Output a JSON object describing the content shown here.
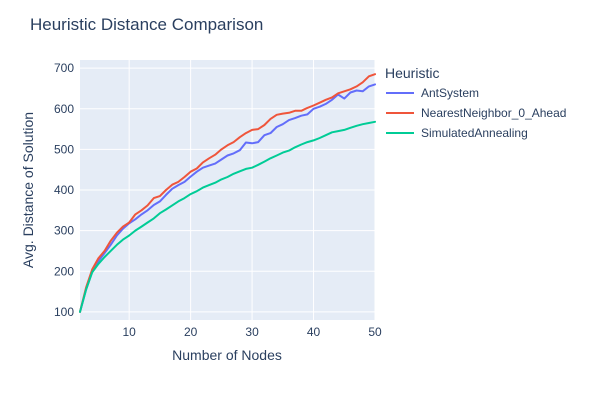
{
  "chart_data": {
    "type": "line",
    "title": "Heuristic Distance Comparison",
    "xlabel": "Number of Nodes",
    "ylabel": "Avg. Distance of Solution",
    "xlim": [
      2,
      50
    ],
    "ylim": [
      80,
      720
    ],
    "xticks": [
      10,
      20,
      30,
      40,
      50
    ],
    "yticks": [
      100,
      200,
      300,
      400,
      500,
      600,
      700
    ],
    "grid": true,
    "legend": {
      "title": "Heuristic",
      "placement": "right"
    },
    "colors": {
      "plot_bg": "#e5ecf6",
      "grid": "#ffffff"
    },
    "x": [
      2,
      3,
      4,
      5,
      6,
      7,
      8,
      9,
      10,
      11,
      12,
      13,
      14,
      15,
      16,
      17,
      18,
      19,
      20,
      21,
      22,
      23,
      24,
      25,
      26,
      27,
      28,
      29,
      30,
      31,
      32,
      33,
      34,
      35,
      36,
      37,
      38,
      39,
      40,
      41,
      42,
      43,
      44,
      45,
      46,
      47,
      48,
      49,
      50
    ],
    "series": [
      {
        "name": "AntSystem",
        "color": "#636efa",
        "values": [
          100,
          155,
          200,
          225,
          245,
          265,
          288,
          305,
          318,
          328,
          340,
          350,
          363,
          372,
          388,
          403,
          412,
          420,
          433,
          445,
          455,
          460,
          465,
          475,
          485,
          490,
          498,
          517,
          515,
          518,
          535,
          540,
          555,
          562,
          572,
          577,
          583,
          586,
          600,
          605,
          612,
          622,
          635,
          625,
          640,
          645,
          643,
          655,
          660
        ]
      },
      {
        "name": "NearestNeighbor_0_Ahead",
        "color": "#ef553b",
        "values": [
          100,
          160,
          205,
          232,
          250,
          275,
          295,
          310,
          320,
          340,
          350,
          362,
          380,
          385,
          400,
          413,
          420,
          432,
          445,
          453,
          468,
          478,
          487,
          500,
          510,
          518,
          530,
          540,
          548,
          550,
          560,
          575,
          585,
          588,
          590,
          595,
          595,
          602,
          608,
          615,
          622,
          628,
          638,
          643,
          648,
          655,
          665,
          680,
          685
        ]
      },
      {
        "name": "SimulatedAnnealing",
        "color": "#00cc96",
        "values": [
          100,
          155,
          198,
          218,
          235,
          250,
          265,
          278,
          288,
          300,
          310,
          320,
          330,
          343,
          352,
          362,
          372,
          380,
          390,
          397,
          406,
          412,
          418,
          426,
          432,
          440,
          446,
          452,
          455,
          462,
          470,
          478,
          485,
          492,
          497,
          505,
          512,
          518,
          522,
          528,
          535,
          542,
          545,
          548,
          553,
          558,
          562,
          565,
          568
        ]
      }
    ]
  }
}
